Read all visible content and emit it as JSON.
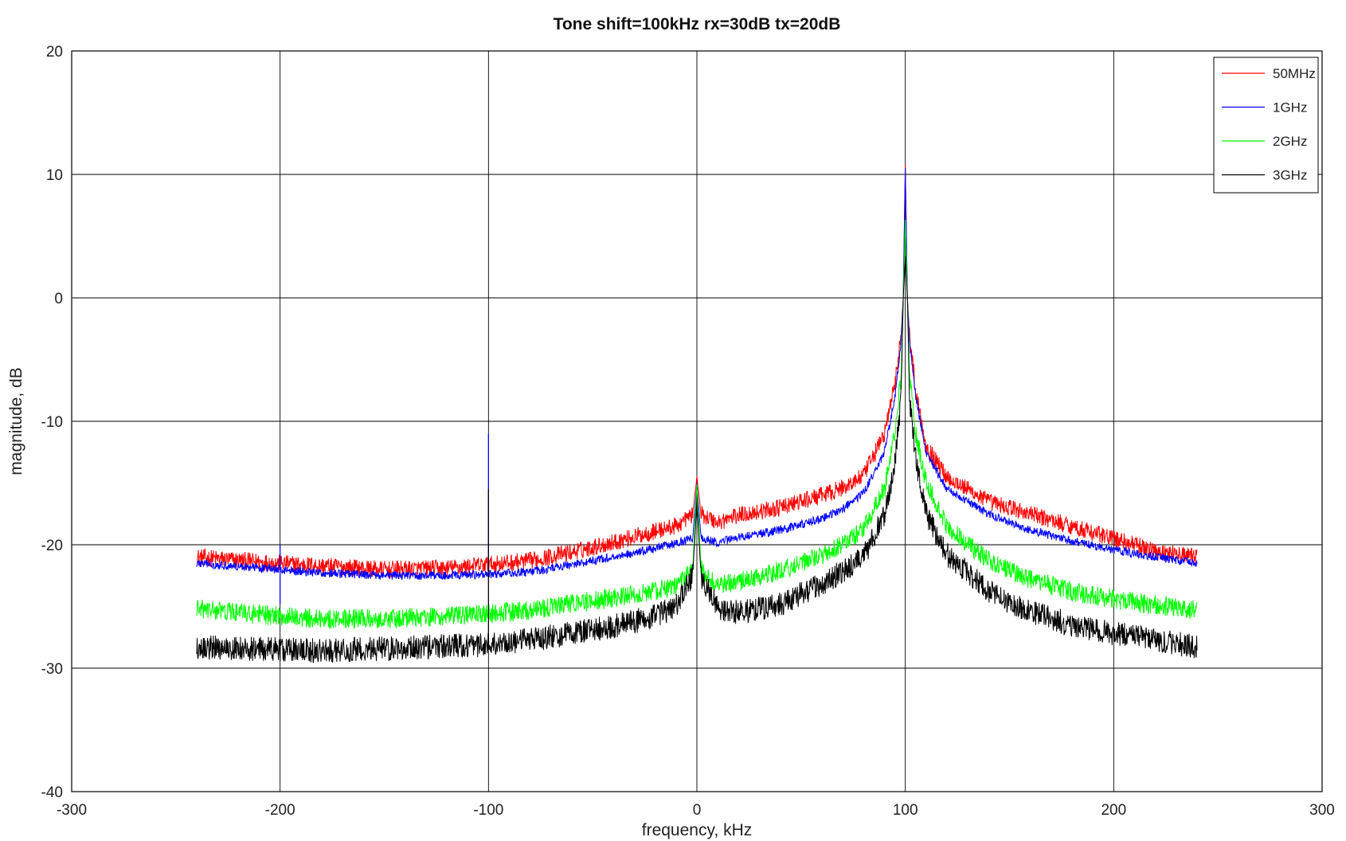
{
  "chart_data": {
    "type": "line",
    "title": "Tone shift=100kHz rx=30dB tx=20dB",
    "xlabel": "frequency, kHz",
    "ylabel": "magnitude, dB",
    "xlim": [
      -300,
      300
    ],
    "ylim": [
      -40,
      20
    ],
    "xticks": [
      -300,
      -200,
      -100,
      0,
      100,
      200,
      300
    ],
    "yticks": [
      -40,
      -30,
      -20,
      -10,
      0,
      10,
      20
    ],
    "grid": true,
    "legend_position": "top-right",
    "data_x_range": [
      -240,
      240
    ],
    "series": [
      {
        "name": "50MHz",
        "color": "#ff0000",
        "noise": 0.7,
        "x": [
          -240,
          -200,
          -180,
          -150,
          -120,
          -100,
          -80,
          -60,
          -40,
          -20,
          -10,
          -2,
          0,
          2,
          10,
          20,
          40,
          60,
          70,
          80,
          90,
          95,
          98,
          99,
          100,
          101,
          102,
          105,
          110,
          120,
          140,
          160,
          180,
          200,
          220,
          240
        ],
        "y": [
          -21,
          -21.5,
          -21.7,
          -22,
          -21.9,
          -21.6,
          -21.3,
          -20.6,
          -19.8,
          -18.9,
          -18.5,
          -17.5,
          -14.5,
          -17.5,
          -18.2,
          -17.6,
          -17,
          -16,
          -15.4,
          -14.4,
          -11,
          -7,
          -3,
          0,
          10.8,
          0,
          -3,
          -7.5,
          -12,
          -14.5,
          -16.5,
          -17.5,
          -18.5,
          -19.5,
          -20.5,
          -21
        ]
      },
      {
        "name": "1GHz",
        "color": "#0000ff",
        "noise": 0.35,
        "x": [
          -240,
          -200,
          -180,
          -150,
          -120,
          -100,
          -80,
          -60,
          -40,
          -20,
          -10,
          -2,
          0,
          2,
          10,
          20,
          40,
          60,
          70,
          80,
          90,
          95,
          98,
          99,
          100,
          101,
          102,
          105,
          110,
          120,
          140,
          160,
          180,
          200,
          220,
          240
        ],
        "y": [
          -21.5,
          -22,
          -22.3,
          -22.5,
          -22.5,
          -22.4,
          -22.2,
          -21.6,
          -21,
          -20.3,
          -19.9,
          -19.5,
          -15,
          -19.5,
          -19.8,
          -19.4,
          -18.8,
          -17.9,
          -17.1,
          -15.8,
          -12.5,
          -8,
          -3.5,
          0,
          10.5,
          0,
          -3.5,
          -8,
          -12.5,
          -15.5,
          -17.5,
          -18.8,
          -19.7,
          -20.4,
          -21,
          -21.5
        ]
      },
      {
        "name": "2GHz",
        "color": "#00ff00",
        "noise": 0.8,
        "x": [
          -240,
          -200,
          -180,
          -150,
          -120,
          -100,
          -80,
          -60,
          -40,
          -20,
          -10,
          -2,
          0,
          2,
          10,
          20,
          40,
          60,
          70,
          80,
          90,
          95,
          98,
          99,
          100,
          101,
          102,
          105,
          110,
          120,
          140,
          160,
          180,
          200,
          220,
          240
        ],
        "y": [
          -25.2,
          -25.8,
          -26,
          -26,
          -25.8,
          -25.6,
          -25.3,
          -24.8,
          -24.3,
          -23.8,
          -23.4,
          -22,
          -15,
          -22,
          -23.3,
          -23,
          -22.1,
          -20.9,
          -20,
          -18.7,
          -15.5,
          -11,
          -6,
          0,
          6.2,
          0,
          -6,
          -11,
          -15,
          -18.5,
          -21.3,
          -22.8,
          -23.8,
          -24.4,
          -24.9,
          -25.3
        ]
      },
      {
        "name": "3GHz",
        "color": "#000000",
        "noise": 1.0,
        "x": [
          -240,
          -200,
          -180,
          -150,
          -120,
          -100,
          -80,
          -60,
          -40,
          -20,
          -10,
          -2,
          0,
          2,
          10,
          20,
          40,
          60,
          70,
          80,
          90,
          95,
          98,
          99,
          100,
          101,
          102,
          105,
          110,
          120,
          140,
          160,
          180,
          200,
          220,
          240
        ],
        "y": [
          -28.3,
          -28.5,
          -28.6,
          -28.4,
          -28.2,
          -28.1,
          -27.7,
          -27.2,
          -26.6,
          -25.8,
          -25,
          -22.5,
          -16.5,
          -22.5,
          -25.2,
          -25.5,
          -24.8,
          -23.2,
          -22.1,
          -21,
          -17.5,
          -13.5,
          -8,
          0,
          3.5,
          0,
          -8,
          -13,
          -17.5,
          -20.8,
          -23.8,
          -25.4,
          -26.5,
          -27.2,
          -27.7,
          -28.3
        ]
      }
    ]
  }
}
